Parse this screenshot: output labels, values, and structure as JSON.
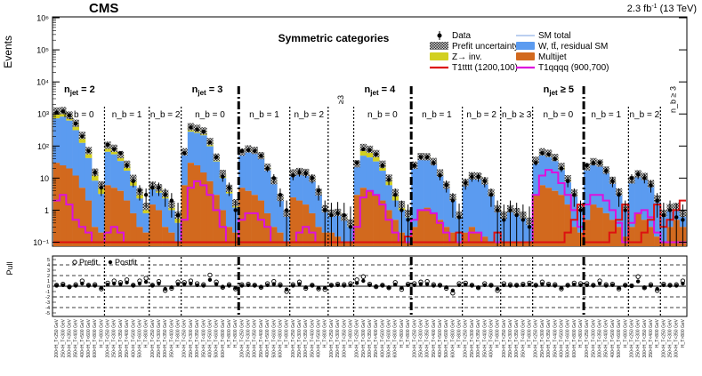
{
  "header": {
    "experiment": "CMS",
    "lumi_text": "2.3 fb",
    "lumi_sup": "-1",
    "energy_text": " (13 TeV)"
  },
  "chart_data": {
    "type": "stacked-histogram",
    "title": "Symmetric categories",
    "ylabel": "Events",
    "yscale": "log",
    "ylim": [
      0.08,
      1000000
    ],
    "y_tick_labels": [
      "10⁻¹",
      "1",
      "10",
      "10²",
      "10³",
      "10⁴",
      "10⁵",
      "10⁶"
    ],
    "legend": [
      {
        "label": "Data",
        "kind": "marker",
        "color": "#000000"
      },
      {
        "label": "SM total",
        "kind": "line",
        "color": "#4a7fd8"
      },
      {
        "label": "Prefit uncertainty",
        "kind": "hatch",
        "color": "#777777"
      },
      {
        "label": "W, tt̄, residual SM",
        "kind": "fill",
        "color": "#5b9bf0"
      },
      {
        "label": "Z→ inv.",
        "kind": "fill",
        "color": "#d2d020"
      },
      {
        "label": "Multijet",
        "kind": "fill",
        "color": "#d2691e"
      },
      {
        "label": "T1tttt (1200,100)",
        "kind": "line",
        "color": "#dd1111"
      },
      {
        "label": "T1qqqq (900,700)",
        "kind": "line",
        "color": "#dd11dd"
      }
    ],
    "njet_labels": [
      {
        "pre": "n",
        "sub": "jet",
        "post": " = 2"
      },
      {
        "pre": "n",
        "sub": "jet",
        "post": " = 3"
      },
      {
        "pre": "n",
        "sub": "jet",
        "post": " = 4"
      },
      {
        "pre": "n",
        "sub": "jet",
        "post": " ≥ 5"
      }
    ],
    "nb_labels": [
      "n_b = 0",
      "n_b = 1",
      "n_b = 2",
      "n_b = 0",
      "n_b = 1",
      "n_b = 2",
      "≥3",
      "n_b = 0",
      "n_b = 1",
      "n_b = 2",
      "n_b ≥ 3",
      "n_b = 0",
      "n_b = 1",
      "n_b = 2",
      "n_b ≥ 3"
    ],
    "bins_per_category": [
      8,
      7,
      5,
      9,
      8,
      6,
      4,
      9,
      8,
      6,
      5,
      8,
      7,
      5,
      4
    ],
    "bin_labels": [
      "200<H_T<250 GeV",
      "250<H_T<300 GeV",
      "300<H_T<350 GeV",
      "350<H_T<400 GeV",
      "400<H_T<500 GeV",
      "500<H_T<600 GeV",
      "600<H_T<800 GeV",
      "H_T>800 GeV"
    ],
    "series": {
      "multijet": [
        30,
        25,
        20,
        12,
        5,
        2,
        0.3,
        0.2,
        6,
        5,
        4,
        2,
        0.8,
        0.3,
        0.2,
        1.5,
        1,
        0.3,
        0.2,
        0.1,
        6,
        30,
        25,
        15,
        8,
        3,
        1,
        0.3,
        0.2,
        5,
        4,
        3,
        2,
        0.8,
        0.3,
        0.2,
        0.1,
        2.5,
        2,
        1.5,
        0.8,
        0.3,
        0.2,
        0.2,
        0.15,
        0.1,
        0.1,
        3,
        5,
        4,
        3,
        2,
        1,
        0.5,
        0.2,
        0.1,
        0.3,
        1,
        1.2,
        0.8,
        0.5,
        0.3,
        0.2,
        0.1,
        0.2,
        0.3,
        0.2,
        0.15,
        0.1,
        0.1,
        0.1,
        0.1,
        0.1,
        0.1,
        0.1,
        3,
        6,
        5,
        4,
        3,
        1.5,
        0.3,
        0.2,
        0.5,
        1.5,
        1.2,
        0.8,
        0.5,
        0.3,
        0.15,
        0.3,
        0.8,
        0.5,
        0.3,
        0.15,
        0.1,
        0.3,
        0.5,
        0.3
      ],
      "wtt": [
        700,
        800,
        600,
        300,
        120,
        40,
        8,
        3,
        60,
        50,
        30,
        15,
        5,
        2,
        0.6,
        3,
        2.5,
        2,
        0.8,
        0.3,
        45,
        250,
        230,
        200,
        90,
        30,
        9,
        3,
        1,
        50,
        65,
        60,
        40,
        18,
        7,
        2,
        0.6,
        10,
        12,
        12,
        8,
        3,
        0.8,
        0.5,
        0.6,
        0.4,
        0.2,
        20,
        45,
        40,
        30,
        15,
        5,
        1.5,
        0.8,
        0.5,
        20,
        40,
        40,
        28,
        12,
        5,
        2,
        0.5,
        6,
        10,
        10,
        7,
        3,
        0.9,
        0.5,
        0.9,
        0.7,
        0.5,
        0.25,
        25,
        45,
        40,
        30,
        15,
        6,
        2.5,
        0.8,
        20,
        28,
        25,
        15,
        7,
        3,
        1,
        8,
        12,
        10,
        6,
        2,
        0.6,
        0.8,
        0.7,
        0.4
      ],
      "zinv": [
        500,
        450,
        300,
        200,
        90,
        30,
        7,
        3,
        40,
        30,
        20,
        10,
        4,
        1.5,
        0.5,
        1.5,
        1.5,
        1,
        0.5,
        0.3,
        15,
        120,
        100,
        80,
        40,
        12,
        4,
        1.5,
        0.5,
        10,
        12,
        10,
        8,
        3,
        1,
        0.3,
        0.1,
        2,
        2,
        1.5,
        1,
        0.4,
        0.1,
        0.1,
        0.1,
        0.1,
        0.1,
        5,
        40,
        35,
        25,
        10,
        4,
        1.5,
        0.5,
        0.2,
        5,
        6,
        5,
        4,
        2,
        0.7,
        0.3,
        0.1,
        1,
        1.5,
        1.3,
        1,
        0.4,
        0.1,
        0.1,
        0.1,
        0.1,
        0.1,
        0.1,
        8,
        15,
        14,
        10,
        5,
        2,
        0.6,
        0.2,
        2,
        3,
        3,
        2,
        1,
        0.4,
        0.1,
        0.5,
        0.8,
        0.7,
        0.4,
        0.1,
        0.1,
        0.1,
        0.1,
        0.1
      ],
      "data": [
        1100,
        1200,
        900,
        500,
        200,
        70,
        15,
        5,
        110,
        80,
        60,
        25,
        8,
        4,
        3,
        5,
        5,
        3,
        2,
        0.7,
        60,
        380,
        330,
        280,
        130,
        45,
        11,
        5,
        1,
        70,
        75,
        70,
        50,
        20,
        10,
        3,
        1,
        12,
        15,
        14,
        10,
        4,
        1,
        0.7,
        0.8,
        0.7,
        0.3,
        30,
        80,
        75,
        55,
        25,
        9,
        3,
        1,
        0.5,
        25,
        45,
        45,
        30,
        12,
        6,
        2,
        0.6,
        7,
        11,
        11,
        8,
        3,
        1,
        0.5,
        1,
        0.7,
        0.5,
        0.3,
        30,
        60,
        55,
        40,
        20,
        8,
        3,
        1,
        25,
        30,
        30,
        17,
        8,
        3,
        1,
        10,
        13,
        10,
        6,
        2,
        0.7,
        1,
        0.6,
        0.5
      ],
      "t1tttt": [
        0.1,
        0.1,
        0.1,
        0.1,
        0.1,
        0.1,
        0.1,
        0.1,
        0.1,
        0.1,
        0.1,
        0.1,
        0.1,
        0.1,
        0.1,
        0.1,
        0.1,
        0.1,
        0.1,
        0.1,
        0.1,
        0.1,
        0.1,
        0.1,
        0.1,
        0.1,
        0.1,
        0.1,
        0.1,
        0.1,
        0.1,
        0.1,
        0.1,
        0.1,
        0.1,
        0.1,
        0.1,
        0.1,
        0.1,
        0.1,
        0.1,
        0.1,
        0.1,
        0.1,
        0.1,
        0.1,
        0.1,
        0.1,
        0.1,
        0.1,
        0.1,
        0.1,
        0.1,
        0.1,
        0.1,
        0.15,
        0.1,
        0.1,
        0.1,
        0.1,
        0.1,
        0.1,
        0.1,
        0.2,
        0.1,
        0.1,
        0.1,
        0.1,
        0.1,
        0.2,
        0.1,
        0.1,
        0.1,
        0.1,
        0.1,
        0.1,
        0.1,
        0.1,
        0.1,
        0.1,
        0.2,
        0.5,
        1.5,
        0.1,
        0.1,
        0.1,
        0.1,
        0.2,
        0.5,
        1.5,
        0.1,
        0.1,
        0.2,
        0.5,
        1.5,
        0.3,
        0.5,
        1,
        2
      ],
      "t1qqqq": [
        2,
        3,
        1.5,
        0.5,
        0.3,
        0.2,
        0.1,
        0.1,
        0.2,
        0.3,
        0.2,
        0.1,
        0.1,
        0.1,
        0.1,
        0.1,
        0.1,
        0.1,
        0.1,
        0.1,
        0.5,
        5,
        8,
        6,
        3,
        1,
        0.3,
        0.1,
        0.1,
        0.5,
        0.8,
        0.8,
        0.5,
        0.3,
        0.1,
        0.1,
        0.1,
        0.1,
        0.2,
        0.3,
        0.2,
        0.1,
        0.1,
        0.1,
        0.1,
        0.1,
        0.1,
        0.3,
        2.5,
        4,
        3,
        1.5,
        0.5,
        0.2,
        0.1,
        0.1,
        0.5,
        1,
        1,
        0.8,
        0.4,
        0.2,
        0.1,
        0.1,
        0.1,
        0.2,
        0.2,
        0.1,
        0.1,
        0.1,
        0.1,
        0.1,
        0.1,
        0.1,
        0.1,
        3,
        12,
        18,
        15,
        7,
        3,
        1,
        0.3,
        1.5,
        3,
        3,
        2,
        1,
        0.4,
        0.1,
        0.4,
        0.8,
        1,
        0.6,
        0.2,
        0.1,
        0.1,
        0.1,
        0.1
      ],
      "pull_prefit": [
        0.2,
        0.4,
        -0.1,
        0.3,
        1,
        0.2,
        0.3,
        -0.5,
        0.6,
        1,
        0.7,
        1.2,
        0.2,
        1,
        1.5,
        0.2,
        0.9,
        -0.8,
        -0.4,
        0.8,
        0.7,
        1,
        0.5,
        0.3,
        2.1,
        0.8,
        -0.2,
        0.3,
        -0.5,
        0.3,
        0.4,
        0.2,
        -0.2,
        0.5,
        0.9,
        0.3,
        -1,
        0.3,
        0.8,
        -0.4,
        0.2,
        -0.5,
        -0.6,
        0.2,
        0.4,
        0.3,
        0.5,
        1.2,
        1.8,
        0.4,
        -0.1,
        0.2,
        -0.3,
        0.7,
        -0.6,
        0.4,
        0.5,
        0.8,
        0.9,
        0.3,
        0.2,
        -0.4,
        -1.3,
        0.5,
        0.6,
        0.2,
        -0.3,
        0.5,
        0.2,
        -0.8,
        0.5,
        0.3,
        0.2,
        0.4,
        0.6,
        0.2,
        0.8,
        0.4,
        0.3,
        -0.5,
        0.2,
        0.6,
        0.5,
        0.5,
        0.2,
        1,
        0.3,
        0.4,
        -0.5,
        0.2,
        0.1,
        1.8,
        -0.3,
        0.3,
        -0.8,
        0.4,
        0.2,
        0.3,
        1
      ],
      "pull_postfit": [
        0.1,
        0.2,
        -0.2,
        0.1,
        0.5,
        0.1,
        0.1,
        -0.3,
        0.3,
        0.5,
        0.4,
        0.7,
        0.1,
        0.5,
        0.8,
        0.1,
        0.5,
        -0.5,
        -0.2,
        0.4,
        0.4,
        0.5,
        0.2,
        0.1,
        1.2,
        0.4,
        -0.1,
        0.1,
        -0.3,
        0.1,
        0.2,
        0.1,
        -0.1,
        0.2,
        0.4,
        0.1,
        -0.6,
        0.1,
        0.4,
        -0.2,
        0.1,
        -0.3,
        -0.3,
        0.1,
        0.2,
        0.1,
        0.2,
        0.6,
        1,
        0.2,
        0,
        0.1,
        -0.2,
        0.3,
        -0.3,
        0.2,
        0.2,
        0.4,
        0.4,
        0.1,
        0.1,
        -0.2,
        -0.8,
        0.2,
        0.3,
        0.1,
        -0.2,
        0.2,
        0.1,
        -0.5,
        0.2,
        0.1,
        0.1,
        0.2,
        0.3,
        0.1,
        0.4,
        0.2,
        0.1,
        -0.3,
        0.1,
        0.3,
        0.2,
        0.2,
        0.1,
        0.5,
        0.1,
        0.2,
        -0.3,
        0.1,
        0,
        0.9,
        -0.2,
        0.1,
        -0.5,
        0.2,
        0.1,
        0.1,
        0.5
      ]
    },
    "pull_panel": {
      "ylabel": "Pull",
      "ylim": [
        -5.5,
        5.5
      ],
      "tick_labels": [
        "-5",
        "-4",
        "-3",
        "-2",
        "-1",
        "0",
        "1",
        "2",
        "3",
        "4",
        "5"
      ],
      "legend": [
        {
          "label": "Prefit",
          "marker": "open-circle"
        },
        {
          "label": "Postfit",
          "marker": "filled-circle"
        }
      ]
    }
  }
}
